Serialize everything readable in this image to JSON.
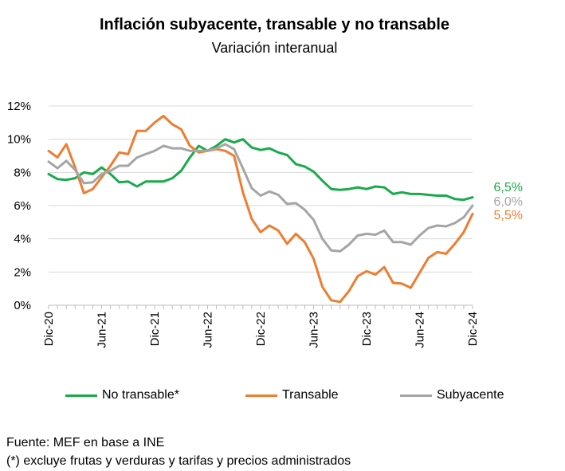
{
  "chart_data": {
    "type": "line",
    "title": "Inflación subyacente, transable y no transable",
    "subtitle": "Variación interanual",
    "xlabel": "",
    "ylabel": "",
    "ylim": [
      0,
      12
    ],
    "yticks": [
      "0%",
      "2%",
      "4%",
      "6%",
      "8%",
      "10%",
      "12%"
    ],
    "ytick_values": [
      0,
      2,
      4,
      6,
      8,
      10,
      12
    ],
    "x": [
      "Dic-20",
      "Ene-21",
      "Feb-21",
      "Mar-21",
      "Abr-21",
      "May-21",
      "Jun-21",
      "Jul-21",
      "Ago-21",
      "Sep-21",
      "Oct-21",
      "Nov-21",
      "Dic-21",
      "Ene-22",
      "Feb-22",
      "Mar-22",
      "Abr-22",
      "May-22",
      "Jun-22",
      "Jul-22",
      "Ago-22",
      "Sep-22",
      "Oct-22",
      "Nov-22",
      "Dic-22",
      "Ene-23",
      "Feb-23",
      "Mar-23",
      "Abr-23",
      "May-23",
      "Jun-23",
      "Jul-23",
      "Ago-23",
      "Sep-23",
      "Oct-23",
      "Nov-23",
      "Dic-23",
      "Ene-24",
      "Feb-24",
      "Mar-24",
      "Abr-24",
      "May-24",
      "Jun-24",
      "Jul-24",
      "Ago-24",
      "Sep-24",
      "Oct-24",
      "Nov-24",
      "Dic-24"
    ],
    "xtick_labels": [
      {
        "index": 0,
        "label": "Dic-20"
      },
      {
        "index": 6,
        "label": "Jun-21"
      },
      {
        "index": 12,
        "label": "Dic-21"
      },
      {
        "index": 18,
        "label": "Jun-22"
      },
      {
        "index": 24,
        "label": "Dic-22"
      },
      {
        "index": 30,
        "label": "Jun-23"
      },
      {
        "index": 36,
        "label": "Dic-23"
      },
      {
        "index": 42,
        "label": "Jun-24"
      },
      {
        "index": 48,
        "label": "Dic-24"
      }
    ],
    "grid": true,
    "legend_position": "bottom",
    "series": [
      {
        "name": "No transable*",
        "color": "#1aaa4b",
        "end_label": "6,5%",
        "values": [
          7.9,
          7.6,
          7.55,
          7.65,
          8.0,
          7.9,
          8.3,
          7.9,
          7.4,
          7.45,
          7.15,
          7.45,
          7.45,
          7.45,
          7.65,
          8.1,
          8.9,
          9.6,
          9.3,
          9.6,
          10.0,
          9.8,
          10.0,
          9.5,
          9.35,
          9.45,
          9.2,
          9.05,
          8.5,
          8.35,
          8.05,
          7.5,
          7.0,
          6.95,
          7.0,
          7.1,
          7.0,
          7.15,
          7.1,
          6.7,
          6.8,
          6.7,
          6.7,
          6.65,
          6.6,
          6.6,
          6.4,
          6.35,
          6.5
        ]
      },
      {
        "name": "Transable",
        "color": "#ed7d31",
        "end_label": "5,5%",
        "values": [
          9.3,
          8.9,
          9.7,
          8.3,
          6.75,
          7.0,
          7.7,
          8.4,
          9.2,
          9.1,
          10.5,
          10.5,
          11.0,
          11.4,
          10.9,
          10.6,
          9.6,
          9.2,
          9.3,
          9.4,
          9.3,
          9.0,
          6.8,
          5.2,
          4.4,
          4.8,
          4.5,
          3.7,
          4.3,
          3.8,
          2.8,
          1.1,
          0.3,
          0.2,
          0.85,
          1.75,
          2.05,
          1.85,
          2.3,
          1.35,
          1.3,
          1.05,
          1.95,
          2.85,
          3.2,
          3.1,
          3.7,
          4.4,
          5.5
        ]
      },
      {
        "name": "Subyacente",
        "color": "#a5a5a5",
        "end_label": "6,0%",
        "values": [
          8.65,
          8.25,
          8.7,
          8.15,
          7.35,
          7.4,
          7.9,
          8.1,
          8.4,
          8.4,
          8.9,
          9.1,
          9.3,
          9.6,
          9.45,
          9.45,
          9.3,
          9.3,
          9.3,
          9.45,
          9.7,
          9.4,
          8.25,
          7.05,
          6.6,
          6.85,
          6.65,
          6.1,
          6.15,
          5.75,
          5.15,
          4.0,
          3.3,
          3.25,
          3.65,
          4.2,
          4.3,
          4.25,
          4.5,
          3.8,
          3.8,
          3.65,
          4.2,
          4.65,
          4.8,
          4.75,
          4.95,
          5.3,
          6.0
        ]
      }
    ]
  },
  "source": {
    "line1": "Fuente: MEF en base a INE",
    "line2": "(*) excluye frutas y verduras y tarifas y precios administrados"
  }
}
